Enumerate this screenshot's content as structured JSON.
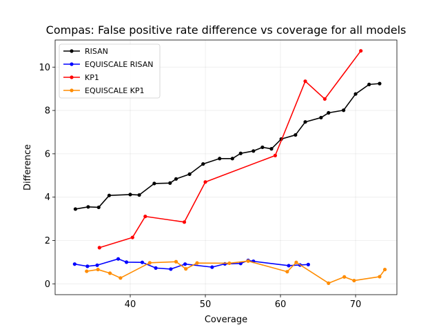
{
  "chart_data": {
    "type": "line",
    "title": "Compas: False positive rate difference vs coverage for all models",
    "xlabel": "Coverage",
    "ylabel": "Difference",
    "xlim": [
      30.0,
      75.5
    ],
    "ylim": [
      -0.5,
      11.25
    ],
    "xticks": [
      40,
      50,
      60,
      70
    ],
    "yticks": [
      0,
      2,
      4,
      6,
      8,
      10
    ],
    "grid": true,
    "legend_position": "top-left",
    "series": [
      {
        "name": "RISAN",
        "color": "#000000",
        "x": [
          32.7,
          34.4,
          35.8,
          37.2,
          40.0,
          41.2,
          43.2,
          45.3,
          46.1,
          47.9,
          49.7,
          51.9,
          53.6,
          54.7,
          56.4,
          57.6,
          58.8,
          60.1,
          62.0,
          63.3,
          65.4,
          66.4,
          68.4,
          70.0,
          71.8,
          73.2
        ],
        "y": [
          3.45,
          3.55,
          3.53,
          4.08,
          4.12,
          4.1,
          4.63,
          4.65,
          4.84,
          5.06,
          5.53,
          5.78,
          5.78,
          6.02,
          6.13,
          6.3,
          6.23,
          6.68,
          6.87,
          7.47,
          7.67,
          7.89,
          8.01,
          8.76,
          9.2,
          9.24
        ]
      },
      {
        "name": "EQUISCALE RISAN",
        "color": "#0000ff",
        "x": [
          32.6,
          34.3,
          35.6,
          38.4,
          39.5,
          41.6,
          43.4,
          45.4,
          47.3,
          50.9,
          52.6,
          54.7,
          55.7,
          56.4,
          61.1,
          62.6,
          63.7
        ],
        "y": [
          0.91,
          0.81,
          0.86,
          1.15,
          1.0,
          0.99,
          0.73,
          0.68,
          0.91,
          0.77,
          0.92,
          0.94,
          1.08,
          1.04,
          0.84,
          0.87,
          0.89
        ]
      },
      {
        "name": "KP1",
        "color": "#ff0000",
        "x": [
          35.9,
          40.3,
          42.0,
          47.2,
          50.0,
          59.3,
          63.3,
          65.9,
          70.7
        ],
        "y": [
          1.67,
          2.14,
          3.11,
          2.85,
          4.7,
          5.92,
          9.35,
          8.53,
          10.75
        ]
      },
      {
        "name": "EQUISCALE KP1",
        "color": "#ff8c00",
        "x": [
          34.2,
          35.7,
          37.3,
          38.7,
          42.6,
          46.1,
          47.4,
          48.9,
          53.2,
          55.7,
          60.9,
          62.1,
          66.4,
          68.5,
          69.8,
          73.2,
          73.9
        ],
        "y": [
          0.58,
          0.66,
          0.49,
          0.27,
          0.97,
          1.02,
          0.69,
          0.96,
          0.95,
          1.05,
          0.56,
          0.99,
          0.03,
          0.32,
          0.15,
          0.33,
          0.66
        ]
      }
    ]
  }
}
